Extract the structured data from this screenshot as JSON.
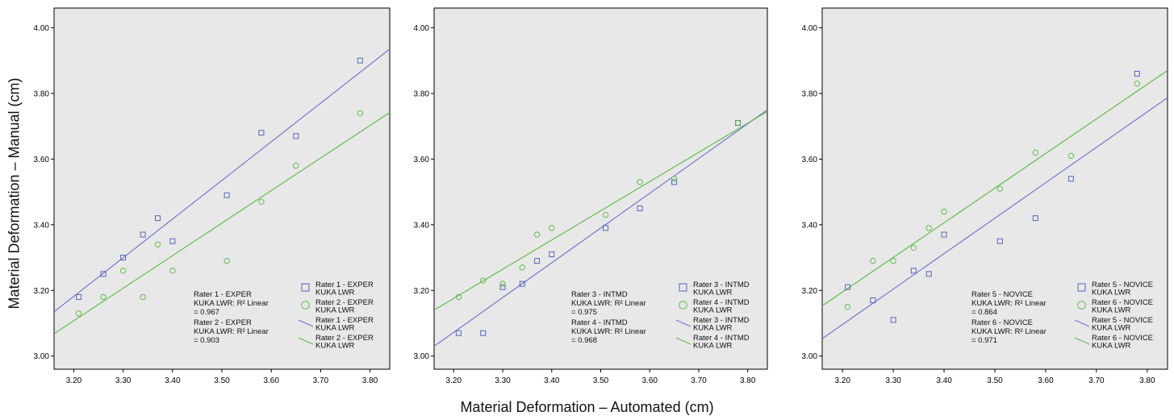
{
  "ylabel": "Material Deformation – Manual (cm)",
  "xlabel": "Material Deformation – Automated (cm)",
  "colors": {
    "square": "#5566bb",
    "circle": "#66bb55",
    "line1": "#7777cc",
    "line2": "#66bb55",
    "plot_bg": "#e8e8e8"
  },
  "chart_data": [
    {
      "type": "scatter",
      "xlim": [
        3.16,
        3.84
      ],
      "ylim": [
        2.96,
        4.06
      ],
      "xticks": [
        "3.20",
        "3.30",
        "3.40",
        "3.50",
        "3.60",
        "3.70",
        "3.80"
      ],
      "yticks": [
        "3.00",
        "3.20",
        "3.40",
        "3.60",
        "3.80",
        "4.00"
      ],
      "x": [
        3.21,
        3.26,
        3.3,
        3.34,
        3.37,
        3.4,
        3.51,
        3.58,
        3.65,
        3.78
      ],
      "series": [
        {
          "name": "Rater 1 - EXPER KUKA LWR",
          "marker": "square",
          "values": [
            3.18,
            3.25,
            3.3,
            3.37,
            3.42,
            3.35,
            3.49,
            3.68,
            3.67,
            3.9
          ]
        },
        {
          "name": "Rater 2 - EXPER KUKA LWR",
          "marker": "circle",
          "values": [
            3.13,
            3.18,
            3.26,
            3.18,
            3.34,
            3.26,
            3.29,
            3.47,
            3.58,
            3.74
          ]
        }
      ],
      "fit_lines": [
        {
          "name": "Rater 1 - EXPER KUKA LWR",
          "x": [
            3.16,
            3.84
          ],
          "y": [
            3.135,
            3.935
          ]
        },
        {
          "name": "Rater 2 - EXPER KUKA LWR",
          "x": [
            3.16,
            3.84
          ],
          "y": [
            3.068,
            3.742
          ]
        }
      ],
      "r2_annotations": [
        {
          "lines": [
            "Rater 1 - EXPER",
            " KUKA LWR: R² Linear",
            "= 0.967"
          ]
        },
        {
          "lines": [
            "Rater 2 - EXPER",
            " KUKA LWR: R² Linear",
            "= 0.903"
          ]
        }
      ],
      "legend": [
        {
          "type": "square",
          "lines": [
            "Rater 1 - EXPER",
            "KUKA LWR"
          ]
        },
        {
          "type": "circle",
          "lines": [
            "Rater 2 - EXPER",
            "KUKA LWR"
          ]
        },
        {
          "type": "line1",
          "lines": [
            "Rater 1 - EXPER",
            "KUKA LWR"
          ]
        },
        {
          "type": "line2",
          "lines": [
            "Rater 2 - EXPER",
            "KUKA LWR"
          ]
        }
      ],
      "legend_position": "bottom-right"
    },
    {
      "type": "scatter",
      "xlim": [
        3.16,
        3.84
      ],
      "ylim": [
        2.96,
        4.06
      ],
      "xticks": [
        "3.20",
        "3.30",
        "3.40",
        "3.50",
        "3.60",
        "3.70",
        "3.80"
      ],
      "yticks": [
        "3.00",
        "3.20",
        "3.40",
        "3.60",
        "3.80",
        "4.00"
      ],
      "x": [
        3.21,
        3.26,
        3.3,
        3.34,
        3.37,
        3.4,
        3.51,
        3.58,
        3.65,
        3.78
      ],
      "series": [
        {
          "name": "Rater 3 - INTMD KUKA LWR",
          "marker": "square",
          "values": [
            3.07,
            3.07,
            3.21,
            3.22,
            3.29,
            3.31,
            3.39,
            3.45,
            3.53,
            3.71
          ]
        },
        {
          "name": "Rater 4 - INTMD KUKA LWR",
          "marker": "circle",
          "values": [
            3.18,
            3.23,
            3.22,
            3.27,
            3.37,
            3.39,
            3.43,
            3.53,
            3.54,
            3.71
          ]
        }
      ],
      "fit_lines": [
        {
          "name": "Rater 3 - INTMD KUKA LWR",
          "x": [
            3.16,
            3.84
          ],
          "y": [
            3.03,
            3.75
          ]
        },
        {
          "name": "Rater 4 - INTMD KUKA LWR",
          "x": [
            3.16,
            3.84
          ],
          "y": [
            3.14,
            3.745
          ]
        }
      ],
      "r2_annotations": [
        {
          "lines": [
            "Rater 3 - INTMD",
            " KUKA LWR: R² Linear",
            "= 0.975"
          ]
        },
        {
          "lines": [
            "Rater 4 - INTMD",
            " KUKA LWR: R² Linear",
            "= 0.968"
          ]
        }
      ],
      "legend": [
        {
          "type": "square",
          "lines": [
            "Rater 3 - INTMD",
            "KUKA LWR"
          ]
        },
        {
          "type": "circle",
          "lines": [
            "Rater 4 - INTMD",
            "KUKA LWR"
          ]
        },
        {
          "type": "line1",
          "lines": [
            "Rater 3 - INTMD",
            "KUKA LWR"
          ]
        },
        {
          "type": "line2",
          "lines": [
            "Rater 4 - INTMD",
            "KUKA LWR"
          ]
        }
      ],
      "legend_position": "bottom-right"
    },
    {
      "type": "scatter",
      "xlim": [
        3.16,
        3.84
      ],
      "ylim": [
        2.96,
        4.06
      ],
      "xticks": [
        "3.20",
        "3.30",
        "3.40",
        "3.50",
        "3.60",
        "3.70",
        "3.80"
      ],
      "yticks": [
        "3.00",
        "3.20",
        "3.40",
        "3.60",
        "3.80",
        "4.00"
      ],
      "x": [
        3.21,
        3.26,
        3.3,
        3.34,
        3.37,
        3.4,
        3.51,
        3.58,
        3.65,
        3.78
      ],
      "series": [
        {
          "name": "Rater 5 - NOVICE KUKA LWR",
          "marker": "square",
          "values": [
            3.21,
            3.17,
            3.11,
            3.26,
            3.25,
            3.37,
            3.35,
            3.42,
            3.54,
            3.86
          ]
        },
        {
          "name": "Rater 6 - NOVICE KUKA LWR",
          "marker": "circle",
          "values": [
            3.15,
            3.29,
            3.29,
            3.33,
            3.39,
            3.44,
            3.51,
            3.62,
            3.61,
            3.83
          ]
        }
      ],
      "fit_lines": [
        {
          "name": "Rater 5 - NOVICE KUKA LWR",
          "x": [
            3.16,
            3.84
          ],
          "y": [
            3.053,
            3.787
          ]
        },
        {
          "name": "Rater 6 - NOVICE KUKA LWR",
          "x": [
            3.16,
            3.84
          ],
          "y": [
            3.153,
            3.87
          ]
        }
      ],
      "r2_annotations": [
        {
          "lines": [
            "Rater 5 - NOVICE",
            " KUKA LWR: R² Linear",
            "= 0.864"
          ]
        },
        {
          "lines": [
            "Rater 6 - NOVICE",
            " KUKA LWR: R² Linear",
            "= 0.971"
          ]
        }
      ],
      "legend": [
        {
          "type": "square",
          "lines": [
            "Rater 5 - NOVICE",
            "KUKA LWR"
          ]
        },
        {
          "type": "circle",
          "lines": [
            "Rater 6 - NOVICE",
            "KUKA LWR"
          ]
        },
        {
          "type": "line1",
          "lines": [
            "Rater 5 - NOVICE",
            "KUKA LWR"
          ]
        },
        {
          "type": "line2",
          "lines": [
            "Rater 6 - NOVICE",
            "KUKA LWR"
          ]
        }
      ],
      "legend_position": "bottom-right"
    }
  ]
}
